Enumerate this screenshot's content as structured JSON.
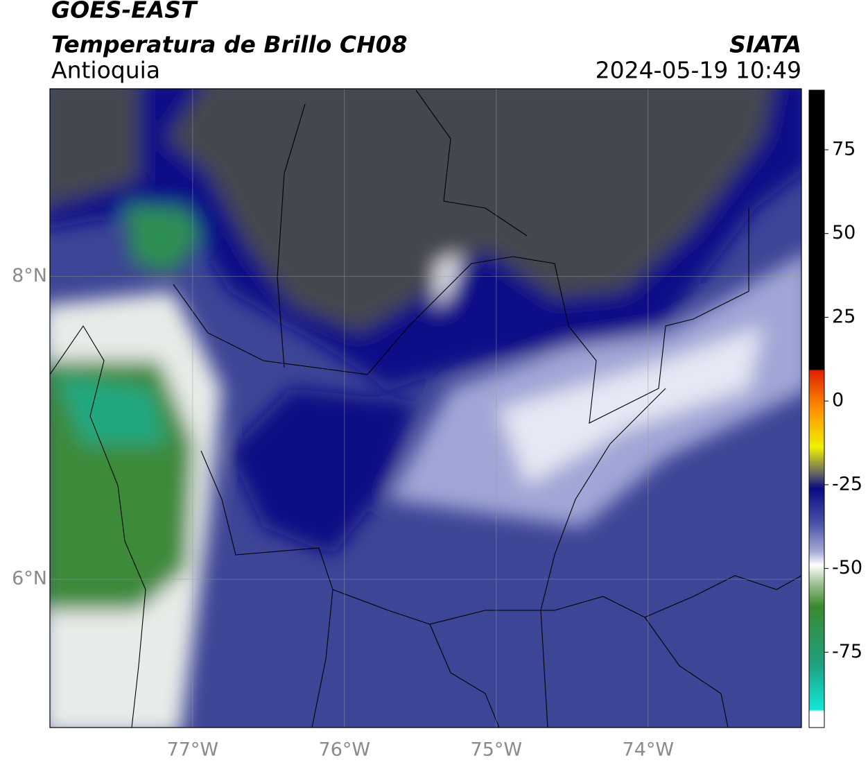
{
  "header": {
    "title": "GOES-EAST",
    "subtitle": "Temperatura de Brillo CH08",
    "region": "Antioquia",
    "source": "SIATA",
    "datetime": "2024-05-19 10:49"
  },
  "map": {
    "xlim": [
      -77.94,
      -72.99
    ],
    "ylim": [
      5.02,
      9.24
    ],
    "xticks": [
      {
        "value": -77,
        "label": "77°W"
      },
      {
        "value": -76,
        "label": "76°W"
      },
      {
        "value": -75,
        "label": "75°W"
      },
      {
        "value": -74,
        "label": "74°W"
      }
    ],
    "yticks": [
      {
        "value": 6,
        "label": "6°N"
      },
      {
        "value": 8,
        "label": "8°N"
      }
    ],
    "grid": true
  },
  "colorbar": {
    "lim": [
      -97.5,
      92.8
    ],
    "ticks": [
      75,
      50,
      25,
      0,
      -25,
      -50,
      -75
    ]
  }
}
